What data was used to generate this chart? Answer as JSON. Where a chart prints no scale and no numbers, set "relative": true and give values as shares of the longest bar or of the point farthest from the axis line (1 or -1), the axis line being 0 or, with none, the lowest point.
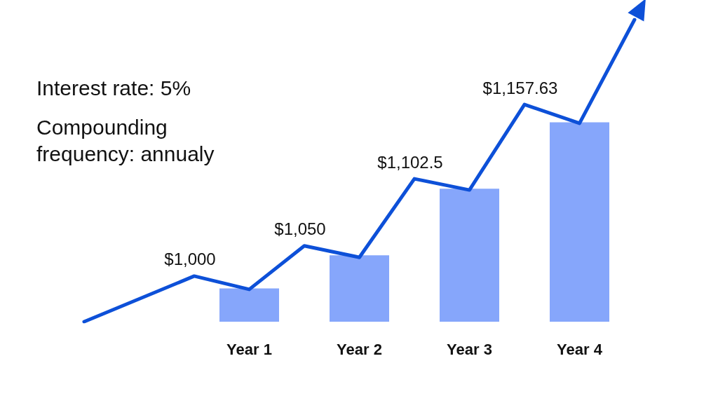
{
  "chart_data": {
    "type": "bar",
    "relative": true,
    "marker": "none",
    "categories": [
      null,
      null,
      null,
      "Year 1",
      null,
      "Year 2",
      null,
      "Year 3",
      null,
      "Year 4",
      null
    ],
    "series": [
      {
        "color": "#86a6fb",
        "values": [
          null,
          null,
          null,
          0.11,
          null,
          0.22,
          null,
          0.44,
          null,
          0.66,
          null
        ]
      },
      {
        "type": "line",
        "color": "#0d50d8",
        "values": [
          0,
          null,
          0.151,
          0.107,
          0.251,
          0.213,
          0.473,
          0.436,
          0.719,
          0.657,
          1
        ]
      }
    ],
    "annotations": [
      "Interest rate: 5%",
      "Compounding frequency: annualy",
      "$1,000",
      "$1,050",
      "$1,102.5",
      "$1,157.63"
    ]
  }
}
